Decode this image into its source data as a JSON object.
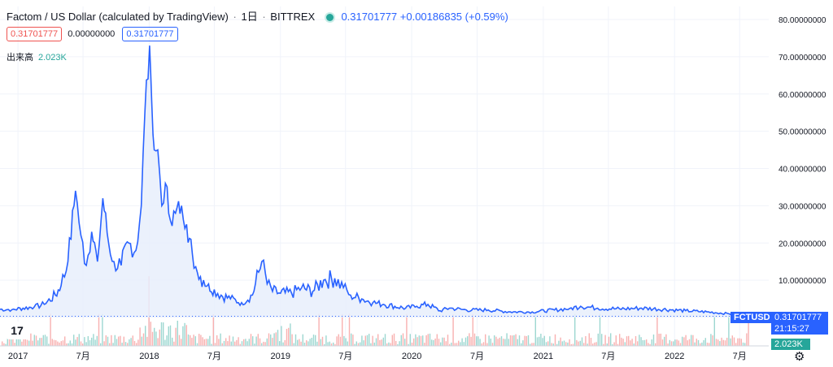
{
  "header": {
    "title": "Factom / US Dollar (calculated by TradingView)",
    "sep1": "/",
    "interval": "1日",
    "exchange": "BITTREX",
    "last_price": "0.31701777",
    "change": "+0.00186835",
    "change_pct": "(+0.59%)"
  },
  "ohlc": {
    "low_box": "0.31701777",
    "mid": "0.00000000",
    "close_box": "0.31701777"
  },
  "volume": {
    "label": "出来高",
    "value": "2.023K"
  },
  "price_tag": {
    "symbol": "FCTUSD",
    "price": "0.31701777",
    "countdown": "21:15:27"
  },
  "volume_tag": "2.023K",
  "logo_text": "17",
  "colors": {
    "line": "#2962ff",
    "fill": "#e8eefc",
    "up": "#26a69a",
    "down": "#ef5350",
    "grid": "#f0f3fa",
    "axis_text": "#131722"
  },
  "chart_data": {
    "type": "area",
    "symbol": "FCTUSD",
    "x_ticks": [
      "2017",
      "7月",
      "2018",
      "7月",
      "2019",
      "7月",
      "2020",
      "7月",
      "2021",
      "7月",
      "2022",
      "7月"
    ],
    "y_ticks": [
      "10.00000000",
      "20.00000000",
      "30.00000000",
      "40.00000000",
      "50.00000000",
      "60.00000000",
      "70.00000000",
      "80.00000000"
    ],
    "ylim": [
      0,
      80
    ],
    "xlim": [
      "2016-11-12",
      "2022-09-20"
    ],
    "series": [
      {
        "x": [
          "2016-11-12",
          "2016-12-15",
          "2017-01-15",
          "2017-02-15",
          "2017-03-15",
          "2017-04-15",
          "2017-05-01",
          "2017-05-20",
          "2017-06-10",
          "2017-06-25",
          "2017-07-10",
          "2017-07-25",
          "2017-08-10",
          "2017-08-25",
          "2017-09-10",
          "2017-09-25",
          "2017-10-15",
          "2017-11-05",
          "2017-11-25",
          "2017-12-10",
          "2017-12-20",
          "2018-01-02",
          "2018-01-08",
          "2018-01-15",
          "2018-01-25",
          "2018-02-05",
          "2018-02-15",
          "2018-03-01",
          "2018-03-15",
          "2018-04-01",
          "2018-04-15",
          "2018-05-01",
          "2018-05-15",
          "2018-06-01",
          "2018-06-15",
          "2018-07-01",
          "2018-07-20",
          "2018-08-15",
          "2018-09-15",
          "2018-10-15",
          "2018-11-10",
          "2018-11-25",
          "2018-12-10",
          "2019-01-01",
          "2019-02-01",
          "2019-03-01",
          "2019-04-01",
          "2019-05-01",
          "2019-06-01",
          "2019-06-25",
          "2019-07-15",
          "2019-08-15",
          "2019-09-15",
          "2019-10-15",
          "2019-11-15",
          "2019-12-15",
          "2020-01-15",
          "2020-02-15",
          "2020-03-20",
          "2020-04-15",
          "2020-06-01",
          "2020-08-01",
          "2020-10-01",
          "2020-12-01",
          "2021-02-01",
          "2021-03-15",
          "2021-04-15",
          "2021-06-01",
          "2021-08-01",
          "2021-10-01",
          "2021-12-01",
          "2022-02-01",
          "2022-04-01",
          "2022-06-01",
          "2022-07-15",
          "2022-09-01",
          "2022-09-20"
        ],
        "y": [
          2.2,
          2.1,
          2.5,
          2.8,
          3.5,
          6.0,
          8.5,
          15.0,
          34.0,
          22.0,
          14.0,
          23.0,
          15.0,
          32.0,
          20.0,
          15.0,
          14.0,
          20.0,
          18.0,
          30.0,
          55.0,
          73.0,
          58.0,
          45.0,
          45.0,
          30.0,
          36.0,
          26.0,
          28.0,
          30.0,
          25.0,
          17.0,
          12.0,
          10.0,
          9.0,
          7.5,
          6.0,
          5.0,
          4.0,
          6.0,
          15.0,
          9.0,
          7.0,
          6.5,
          6.5,
          8.0,
          7.0,
          10.0,
          10.5,
          8.0,
          6.0,
          5.0,
          4.0,
          3.5,
          3.0,
          2.5,
          3.0,
          3.5,
          1.8,
          2.5,
          2.0,
          2.0,
          1.5,
          1.5,
          2.0,
          2.4,
          3.0,
          2.5,
          2.3,
          2.5,
          2.2,
          1.8,
          1.5,
          1.0,
          0.6,
          0.35,
          0.32
        ]
      }
    ],
    "volume_seed": 7,
    "grid": true,
    "legend": "none"
  }
}
